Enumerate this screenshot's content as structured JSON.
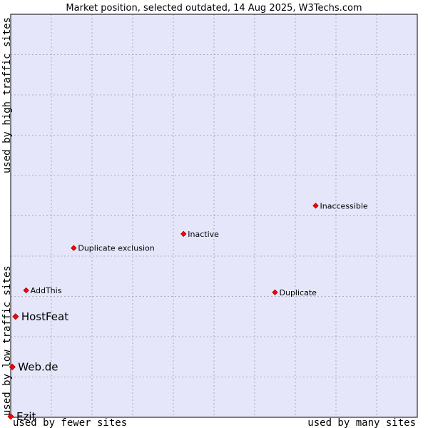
{
  "chart_data": {
    "type": "scatter",
    "title": "Market position, selected outdated, 14 Aug 2025, W3Techs.com",
    "xlabel_low": "used by fewer sites",
    "xlabel_high": "used by many sites",
    "ylabel_low": "used by low traffic sites",
    "ylabel_high": "used by high traffic sites",
    "xlim": [
      0,
      100
    ],
    "ylim": [
      0,
      100
    ],
    "grid": true,
    "colors": {
      "plot_bg": "#e6e6fa",
      "grid": "#9a9aaa",
      "point": "#ff0000",
      "point_stroke": "#990000"
    },
    "points": [
      {
        "label": "Inaccessible",
        "x": 75.0,
        "y": 52.5,
        "size": "small"
      },
      {
        "label": "Inactive",
        "x": 42.5,
        "y": 45.5,
        "size": "small"
      },
      {
        "label": "Duplicate exclusion",
        "x": 15.5,
        "y": 42.0,
        "size": "small"
      },
      {
        "label": "Duplicate",
        "x": 65.0,
        "y": 31.0,
        "size": "small"
      },
      {
        "label": "AddThis",
        "x": 3.8,
        "y": 31.5,
        "size": "small"
      },
      {
        "label": "HostFeat",
        "x": 1.2,
        "y": 25.0,
        "size": "large"
      },
      {
        "label": "Web.de",
        "x": 0.4,
        "y": 12.5,
        "size": "large"
      },
      {
        "label": "Ezit",
        "x": 0.0,
        "y": 0.2,
        "size": "large"
      }
    ]
  }
}
